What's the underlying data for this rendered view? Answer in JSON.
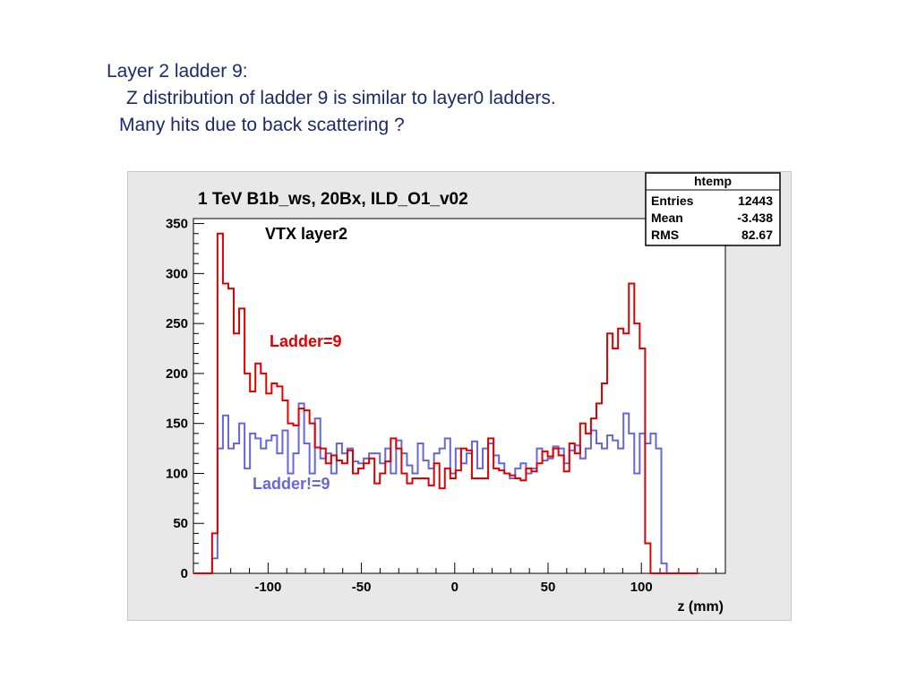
{
  "slide": {
    "line1": "Layer 2 ladder 9:",
    "line2": "Z distribution of ladder 9 is similar to layer0 ladders.",
    "line3": "Many hits due to back scattering ?"
  },
  "stats_box": {
    "title": "htemp",
    "rows": [
      {
        "label": "Entries",
        "value": "12443"
      },
      {
        "label": "Mean",
        "value": "-3.438"
      },
      {
        "label": "RMS",
        "value": "82.67"
      }
    ]
  },
  "chart_data": {
    "type": "line",
    "title": "1 TeV B1b_ws, 20Bx, ILD_O1_v02",
    "subtitle": "VTX layer2",
    "xlabel": "z (mm)",
    "ylabel": "",
    "xlim": [
      -140,
      145
    ],
    "ylim": [
      0,
      355
    ],
    "x_ticks": [
      "-100",
      "-50",
      "0",
      "50",
      "100"
    ],
    "y_ticks": [
      "0",
      "50",
      "100",
      "150",
      "200",
      "250",
      "300",
      "350"
    ],
    "grid": false,
    "bin_edges_start": -130,
    "bin_width": 2.9,
    "series": [
      {
        "name": "Ladder=9",
        "color": "#e00000",
        "values": [
          40,
          340,
          290,
          285,
          240,
          265,
          200,
          182,
          210,
          200,
          180,
          190,
          187,
          173,
          150,
          148,
          165,
          163,
          150,
          126,
          125,
          110,
          118,
          113,
          110,
          123,
          100,
          105,
          110,
          115,
          90,
          100,
          112,
          135,
          125,
          100,
          90,
          95,
          95,
          95,
          88,
          110,
          85,
          105,
          95,
          103,
          125,
          123,
          95,
          95,
          95,
          135,
          105,
          103,
          100,
          98,
          95,
          93,
          105,
          102,
          110,
          122,
          117,
          125,
          118,
          102,
          130,
          120,
          150,
          140,
          155,
          170,
          190,
          240,
          225,
          245,
          240,
          290,
          250,
          225,
          30
        ]
      },
      {
        "name": "Ladder!=9",
        "color": "#6666dd",
        "values": [
          15,
          125,
          158,
          125,
          130,
          150,
          105,
          140,
          135,
          125,
          133,
          138,
          120,
          143,
          100,
          120,
          170,
          130,
          100,
          155,
          115,
          120,
          100,
          130,
          120,
          125,
          112,
          110,
          115,
          120,
          120,
          110,
          125,
          100,
          133,
          120,
          108,
          100,
          130,
          113,
          105,
          120,
          125,
          135,
          100,
          125,
          110,
          120,
          132,
          105,
          125,
          130,
          118,
          110,
          100,
          95,
          105,
          110,
          100,
          105,
          125,
          113,
          115,
          127,
          125,
          110,
          123,
          128,
          115,
          125,
          143,
          130,
          125,
          138,
          133,
          125,
          160,
          140,
          100,
          140,
          130,
          140,
          125,
          10
        ]
      }
    ],
    "annotations": [
      {
        "text": "Ladder=9",
        "color": "#e00000"
      },
      {
        "text": "Ladder!=9",
        "color": "#6666dd"
      }
    ]
  }
}
